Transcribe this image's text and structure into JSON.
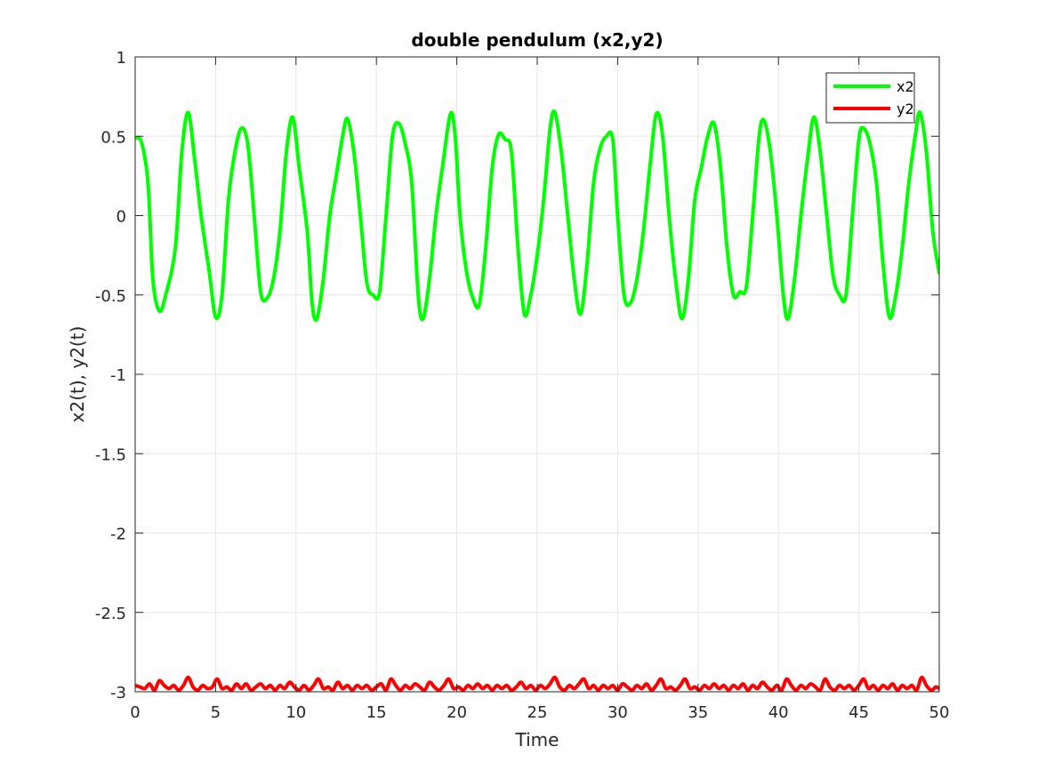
{
  "chart_data": {
    "type": "line",
    "title": "double pendulum (x2,y2)",
    "xlabel": "Time",
    "ylabel": "x2(t), y2(t)",
    "xlim": [
      0,
      50
    ],
    "ylim": [
      -3,
      1
    ],
    "xticks": [
      0,
      5,
      10,
      15,
      20,
      25,
      30,
      35,
      40,
      45,
      50
    ],
    "yticks": [
      1,
      0.5,
      0,
      -0.5,
      -1,
      -1.5,
      -2,
      -2.5,
      -3
    ],
    "grid": true,
    "legend_position": "top-right",
    "series": [
      {
        "name": "x2",
        "color": "#00ff00",
        "points": [
          [
            0,
            0.49
          ],
          [
            0.4,
            0.46
          ],
          [
            0.8,
            0.2
          ],
          [
            1.1,
            -0.4
          ],
          [
            1.5,
            -0.6
          ],
          [
            1.9,
            -0.5
          ],
          [
            2.5,
            -0.2
          ],
          [
            2.9,
            0.4
          ],
          [
            3.3,
            0.65
          ],
          [
            3.7,
            0.35
          ],
          [
            4.1,
            0.0
          ],
          [
            4.6,
            -0.35
          ],
          [
            5.0,
            -0.64
          ],
          [
            5.4,
            -0.5
          ],
          [
            5.8,
            0.1
          ],
          [
            6.2,
            0.4
          ],
          [
            6.6,
            0.55
          ],
          [
            7.0,
            0.45
          ],
          [
            7.4,
            0.0
          ],
          [
            7.8,
            -0.48
          ],
          [
            8.2,
            -0.52
          ],
          [
            8.6,
            -0.4
          ],
          [
            9.0,
            -0.1
          ],
          [
            9.4,
            0.4
          ],
          [
            9.8,
            0.62
          ],
          [
            10.2,
            0.3
          ],
          [
            10.7,
            -0.1
          ],
          [
            11.0,
            -0.55
          ],
          [
            11.3,
            -0.65
          ],
          [
            11.7,
            -0.4
          ],
          [
            12.1,
            0.0
          ],
          [
            12.5,
            0.25
          ],
          [
            12.9,
            0.5
          ],
          [
            13.2,
            0.61
          ],
          [
            13.6,
            0.4
          ],
          [
            14.0,
            0.0
          ],
          [
            14.4,
            -0.42
          ],
          [
            14.8,
            -0.5
          ],
          [
            15.2,
            -0.48
          ],
          [
            15.6,
            0.0
          ],
          [
            16.0,
            0.5
          ],
          [
            16.4,
            0.58
          ],
          [
            16.8,
            0.45
          ],
          [
            17.2,
            0.2
          ],
          [
            17.6,
            -0.5
          ],
          [
            17.9,
            -0.65
          ],
          [
            18.3,
            -0.4
          ],
          [
            18.7,
            0.0
          ],
          [
            19.1,
            0.3
          ],
          [
            19.6,
            0.64
          ],
          [
            19.9,
            0.5
          ],
          [
            20.2,
            0.0
          ],
          [
            20.6,
            -0.35
          ],
          [
            21.0,
            -0.52
          ],
          [
            21.4,
            -0.56
          ],
          [
            21.8,
            -0.2
          ],
          [
            22.2,
            0.3
          ],
          [
            22.6,
            0.51
          ],
          [
            23.0,
            0.48
          ],
          [
            23.4,
            0.4
          ],
          [
            23.8,
            -0.2
          ],
          [
            24.2,
            -0.62
          ],
          [
            24.6,
            -0.5
          ],
          [
            25.0,
            -0.25
          ],
          [
            25.4,
            0.1
          ],
          [
            25.8,
            0.55
          ],
          [
            26.1,
            0.65
          ],
          [
            26.5,
            0.4
          ],
          [
            26.9,
            0.0
          ],
          [
            27.3,
            -0.4
          ],
          [
            27.7,
            -0.62
          ],
          [
            28.1,
            -0.3
          ],
          [
            28.5,
            0.2
          ],
          [
            28.9,
            0.42
          ],
          [
            29.3,
            0.5
          ],
          [
            29.7,
            0.48
          ],
          [
            30.0,
            0.0
          ],
          [
            30.4,
            -0.5
          ],
          [
            30.8,
            -0.55
          ],
          [
            31.2,
            -0.4
          ],
          [
            31.6,
            -0.1
          ],
          [
            32.0,
            0.3
          ],
          [
            32.4,
            0.64
          ],
          [
            32.8,
            0.5
          ],
          [
            33.2,
            0.0
          ],
          [
            33.6,
            -0.4
          ],
          [
            34.0,
            -0.65
          ],
          [
            34.4,
            -0.4
          ],
          [
            34.8,
            0.1
          ],
          [
            35.2,
            0.3
          ],
          [
            35.6,
            0.5
          ],
          [
            36.0,
            0.58
          ],
          [
            36.4,
            0.3
          ],
          [
            36.8,
            -0.2
          ],
          [
            37.2,
            -0.5
          ],
          [
            37.6,
            -0.48
          ],
          [
            38.0,
            -0.45
          ],
          [
            38.4,
            0.0
          ],
          [
            38.8,
            0.5
          ],
          [
            39.1,
            0.6
          ],
          [
            39.5,
            0.4
          ],
          [
            39.9,
            0.0
          ],
          [
            40.3,
            -0.5
          ],
          [
            40.6,
            -0.65
          ],
          [
            41.0,
            -0.4
          ],
          [
            41.4,
            0.0
          ],
          [
            41.8,
            0.35
          ],
          [
            42.2,
            0.62
          ],
          [
            42.6,
            0.4
          ],
          [
            43.0,
            0.0
          ],
          [
            43.4,
            -0.38
          ],
          [
            43.8,
            -0.5
          ],
          [
            44.2,
            -0.5
          ],
          [
            44.6,
            0.0
          ],
          [
            45.0,
            0.48
          ],
          [
            45.3,
            0.55
          ],
          [
            45.7,
            0.45
          ],
          [
            46.1,
            0.2
          ],
          [
            46.5,
            -0.3
          ],
          [
            46.9,
            -0.64
          ],
          [
            47.3,
            -0.5
          ],
          [
            47.7,
            -0.2
          ],
          [
            48.1,
            0.2
          ],
          [
            48.5,
            0.5
          ],
          [
            48.8,
            0.65
          ],
          [
            49.2,
            0.4
          ],
          [
            49.6,
            -0.1
          ],
          [
            50.0,
            -0.36
          ]
        ]
      },
      {
        "name": "y2",
        "color": "#ff0000",
        "points": [
          [
            0,
            -2.96
          ],
          [
            0.3,
            -2.97
          ],
          [
            0.6,
            -2.98
          ],
          [
            0.9,
            -2.95
          ],
          [
            1.2,
            -2.99
          ],
          [
            1.5,
            -2.93
          ],
          [
            1.8,
            -2.96
          ],
          [
            2.1,
            -2.98
          ],
          [
            2.4,
            -2.96
          ],
          [
            2.7,
            -2.99
          ],
          [
            3.0,
            -2.96
          ],
          [
            3.3,
            -2.91
          ],
          [
            3.6,
            -2.97
          ],
          [
            3.9,
            -2.99
          ],
          [
            4.2,
            -2.96
          ],
          [
            4.5,
            -2.98
          ],
          [
            4.8,
            -2.97
          ],
          [
            5.1,
            -2.92
          ],
          [
            5.4,
            -2.98
          ],
          [
            5.7,
            -2.97
          ],
          [
            6.0,
            -2.99
          ],
          [
            6.3,
            -2.95
          ],
          [
            6.6,
            -2.98
          ],
          [
            6.9,
            -2.95
          ],
          [
            7.2,
            -2.99
          ],
          [
            7.5,
            -2.97
          ],
          [
            7.8,
            -2.95
          ],
          [
            8.1,
            -2.98
          ],
          [
            8.4,
            -2.96
          ],
          [
            8.7,
            -2.99
          ],
          [
            9.0,
            -2.96
          ],
          [
            9.3,
            -2.98
          ],
          [
            9.6,
            -2.94
          ],
          [
            9.9,
            -2.97
          ],
          [
            10.2,
            -2.99
          ],
          [
            10.5,
            -2.96
          ],
          [
            10.8,
            -2.99
          ],
          [
            11.1,
            -2.96
          ],
          [
            11.4,
            -2.92
          ],
          [
            11.7,
            -2.98
          ],
          [
            12.0,
            -2.97
          ],
          [
            12.3,
            -2.99
          ],
          [
            12.6,
            -2.94
          ],
          [
            12.9,
            -2.98
          ],
          [
            13.2,
            -2.96
          ],
          [
            13.5,
            -2.99
          ],
          [
            13.8,
            -2.96
          ],
          [
            14.1,
            -2.98
          ],
          [
            14.4,
            -2.96
          ],
          [
            14.7,
            -2.99
          ],
          [
            15.0,
            -2.97
          ],
          [
            15.3,
            -2.95
          ],
          [
            15.6,
            -2.99
          ],
          [
            15.9,
            -2.92
          ],
          [
            16.2,
            -2.96
          ],
          [
            16.5,
            -2.99
          ],
          [
            16.8,
            -2.96
          ],
          [
            17.1,
            -2.98
          ],
          [
            17.4,
            -2.95
          ],
          [
            17.7,
            -2.97
          ],
          [
            18.0,
            -2.99
          ],
          [
            18.3,
            -2.94
          ],
          [
            18.6,
            -2.97
          ],
          [
            18.9,
            -2.99
          ],
          [
            19.2,
            -2.96
          ],
          [
            19.5,
            -2.92
          ],
          [
            19.8,
            -2.98
          ],
          [
            20.1,
            -2.97
          ],
          [
            20.4,
            -2.99
          ],
          [
            20.7,
            -2.96
          ],
          [
            21.0,
            -2.98
          ],
          [
            21.3,
            -2.95
          ],
          [
            21.6,
            -2.98
          ],
          [
            21.9,
            -2.96
          ],
          [
            22.2,
            -2.99
          ],
          [
            22.5,
            -2.96
          ],
          [
            22.8,
            -2.98
          ],
          [
            23.1,
            -2.96
          ],
          [
            23.4,
            -2.99
          ],
          [
            23.7,
            -2.97
          ],
          [
            24.0,
            -2.94
          ],
          [
            24.3,
            -2.98
          ],
          [
            24.6,
            -2.96
          ],
          [
            24.9,
            -2.99
          ],
          [
            25.2,
            -2.96
          ],
          [
            25.5,
            -2.98
          ],
          [
            25.8,
            -2.95
          ],
          [
            26.1,
            -2.91
          ],
          [
            26.4,
            -2.97
          ],
          [
            26.7,
            -2.99
          ],
          [
            27.0,
            -2.96
          ],
          [
            27.3,
            -2.98
          ],
          [
            27.6,
            -2.95
          ],
          [
            27.9,
            -2.92
          ],
          [
            28.2,
            -2.98
          ],
          [
            28.5,
            -2.96
          ],
          [
            28.8,
            -2.99
          ],
          [
            29.1,
            -2.96
          ],
          [
            29.4,
            -2.98
          ],
          [
            29.7,
            -2.96
          ],
          [
            30.0,
            -2.99
          ],
          [
            30.3,
            -2.95
          ],
          [
            30.6,
            -2.97
          ],
          [
            30.9,
            -2.99
          ],
          [
            31.2,
            -2.96
          ],
          [
            31.5,
            -2.98
          ],
          [
            31.8,
            -2.95
          ],
          [
            32.1,
            -2.99
          ],
          [
            32.4,
            -2.96
          ],
          [
            32.7,
            -2.92
          ],
          [
            33.0,
            -2.98
          ],
          [
            33.3,
            -2.97
          ],
          [
            33.6,
            -2.99
          ],
          [
            33.9,
            -2.96
          ],
          [
            34.2,
            -2.92
          ],
          [
            34.5,
            -2.98
          ],
          [
            34.8,
            -2.97
          ],
          [
            35.1,
            -2.99
          ],
          [
            35.4,
            -2.96
          ],
          [
            35.7,
            -2.98
          ],
          [
            36.0,
            -2.95
          ],
          [
            36.3,
            -2.98
          ],
          [
            36.6,
            -2.96
          ],
          [
            36.9,
            -2.99
          ],
          [
            37.2,
            -2.96
          ],
          [
            37.5,
            -2.98
          ],
          [
            37.8,
            -2.95
          ],
          [
            38.1,
            -2.99
          ],
          [
            38.4,
            -2.96
          ],
          [
            38.7,
            -2.98
          ],
          [
            39.0,
            -2.94
          ],
          [
            39.3,
            -2.97
          ],
          [
            39.6,
            -2.99
          ],
          [
            39.9,
            -2.96
          ],
          [
            40.2,
            -2.99
          ],
          [
            40.5,
            -2.92
          ],
          [
            40.8,
            -2.96
          ],
          [
            41.1,
            -2.99
          ],
          [
            41.4,
            -2.96
          ],
          [
            41.7,
            -2.98
          ],
          [
            42.0,
            -2.95
          ],
          [
            42.3,
            -2.97
          ],
          [
            42.6,
            -2.99
          ],
          [
            42.9,
            -2.92
          ],
          [
            43.2,
            -2.97
          ],
          [
            43.5,
            -2.99
          ],
          [
            43.8,
            -2.96
          ],
          [
            44.1,
            -2.98
          ],
          [
            44.4,
            -2.96
          ],
          [
            44.7,
            -2.99
          ],
          [
            45.0,
            -2.96
          ],
          [
            45.3,
            -2.92
          ],
          [
            45.6,
            -2.98
          ],
          [
            45.9,
            -2.96
          ],
          [
            46.2,
            -2.99
          ],
          [
            46.5,
            -2.96
          ],
          [
            46.8,
            -2.98
          ],
          [
            47.1,
            -2.95
          ],
          [
            47.4,
            -2.99
          ],
          [
            47.7,
            -2.96
          ],
          [
            48.0,
            -2.98
          ],
          [
            48.3,
            -2.96
          ],
          [
            48.6,
            -2.99
          ],
          [
            48.9,
            -2.91
          ],
          [
            49.2,
            -2.96
          ],
          [
            49.5,
            -2.99
          ],
          [
            49.8,
            -2.97
          ],
          [
            50.0,
            -2.98
          ]
        ]
      }
    ]
  }
}
